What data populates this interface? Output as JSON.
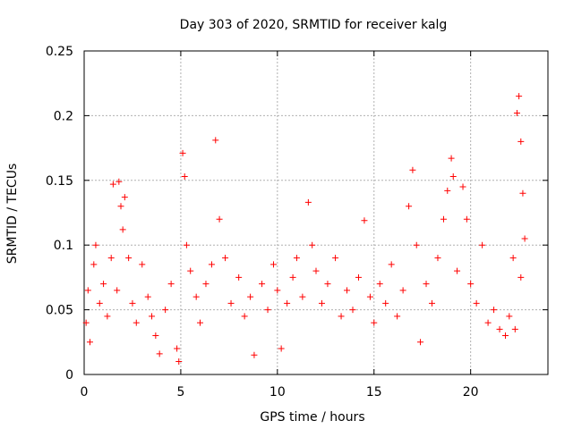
{
  "chart_data": {
    "type": "scatter",
    "title": "Day 303 of 2020, SRMTID for receiver kalg",
    "xlabel": "GPS time / hours",
    "ylabel": "SRMTID / TECUs",
    "xlim": [
      0,
      24
    ],
    "ylim": [
      0,
      0.25
    ],
    "xticks": [
      0,
      5,
      10,
      15,
      20
    ],
    "yticks": [
      0,
      0.05,
      0.1,
      0.15,
      0.2,
      0.25
    ],
    "grid": true,
    "marker": "+",
    "color": "#ff0000",
    "series": [
      {
        "name": "SRMTID",
        "points": [
          [
            0.1,
            0.04
          ],
          [
            0.2,
            0.065
          ],
          [
            0.3,
            0.025
          ],
          [
            0.5,
            0.085
          ],
          [
            0.6,
            0.1
          ],
          [
            0.8,
            0.055
          ],
          [
            1.0,
            0.07
          ],
          [
            1.2,
            0.045
          ],
          [
            1.4,
            0.09
          ],
          [
            1.5,
            0.147
          ],
          [
            1.7,
            0.065
          ],
          [
            1.8,
            0.149
          ],
          [
            1.9,
            0.13
          ],
          [
            2.0,
            0.112
          ],
          [
            2.1,
            0.137
          ],
          [
            2.3,
            0.09
          ],
          [
            2.5,
            0.055
          ],
          [
            2.7,
            0.04
          ],
          [
            3.0,
            0.085
          ],
          [
            3.3,
            0.06
          ],
          [
            3.5,
            0.045
          ],
          [
            3.7,
            0.03
          ],
          [
            3.9,
            0.016
          ],
          [
            4.2,
            0.05
          ],
          [
            4.5,
            0.07
          ],
          [
            4.8,
            0.02
          ],
          [
            4.9,
            0.01
          ],
          [
            5.1,
            0.171
          ],
          [
            5.2,
            0.153
          ],
          [
            5.3,
            0.1
          ],
          [
            5.5,
            0.08
          ],
          [
            5.8,
            0.06
          ],
          [
            6.0,
            0.04
          ],
          [
            6.3,
            0.07
          ],
          [
            6.6,
            0.085
          ],
          [
            6.8,
            0.181
          ],
          [
            7.0,
            0.12
          ],
          [
            7.3,
            0.09
          ],
          [
            7.6,
            0.055
          ],
          [
            8.0,
            0.075
          ],
          [
            8.3,
            0.045
          ],
          [
            8.6,
            0.06
          ],
          [
            8.8,
            0.015
          ],
          [
            9.2,
            0.07
          ],
          [
            9.5,
            0.05
          ],
          [
            9.8,
            0.085
          ],
          [
            10.0,
            0.065
          ],
          [
            10.2,
            0.02
          ],
          [
            10.5,
            0.055
          ],
          [
            10.8,
            0.075
          ],
          [
            11.0,
            0.09
          ],
          [
            11.3,
            0.06
          ],
          [
            11.6,
            0.133
          ],
          [
            11.8,
            0.1
          ],
          [
            12.0,
            0.08
          ],
          [
            12.3,
            0.055
          ],
          [
            12.6,
            0.07
          ],
          [
            13.0,
            0.09
          ],
          [
            13.3,
            0.045
          ],
          [
            13.6,
            0.065
          ],
          [
            13.9,
            0.05
          ],
          [
            14.2,
            0.075
          ],
          [
            14.5,
            0.119
          ],
          [
            14.8,
            0.06
          ],
          [
            15.0,
            0.04
          ],
          [
            15.3,
            0.07
          ],
          [
            15.6,
            0.055
          ],
          [
            15.9,
            0.085
          ],
          [
            16.2,
            0.045
          ],
          [
            16.5,
            0.065
          ],
          [
            16.8,
            0.13
          ],
          [
            17.0,
            0.158
          ],
          [
            17.2,
            0.1
          ],
          [
            17.4,
            0.025
          ],
          [
            17.7,
            0.07
          ],
          [
            18.0,
            0.055
          ],
          [
            18.3,
            0.09
          ],
          [
            18.6,
            0.12
          ],
          [
            18.8,
            0.142
          ],
          [
            19.0,
            0.167
          ],
          [
            19.1,
            0.153
          ],
          [
            19.3,
            0.08
          ],
          [
            19.6,
            0.145
          ],
          [
            19.8,
            0.12
          ],
          [
            20.0,
            0.07
          ],
          [
            20.3,
            0.055
          ],
          [
            20.6,
            0.1
          ],
          [
            20.9,
            0.04
          ],
          [
            21.2,
            0.05
          ],
          [
            21.5,
            0.035
          ],
          [
            21.8,
            0.03
          ],
          [
            22.0,
            0.045
          ],
          [
            22.2,
            0.09
          ],
          [
            22.4,
            0.202
          ],
          [
            22.5,
            0.215
          ],
          [
            22.6,
            0.18
          ],
          [
            22.7,
            0.14
          ],
          [
            22.8,
            0.105
          ],
          [
            22.6,
            0.075
          ],
          [
            22.3,
            0.035
          ]
        ]
      }
    ]
  }
}
